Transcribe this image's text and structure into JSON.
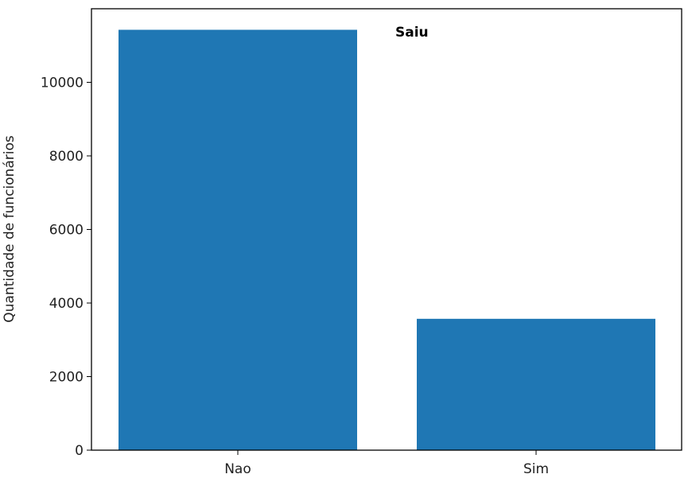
{
  "chart_data": {
    "type": "bar",
    "categories": [
      "Nao",
      "Sim"
    ],
    "values": [
      11428,
      3571
    ],
    "ylabel": "Quantidade de funcionários",
    "xlabel": "",
    "ylim": [
      0,
      12000
    ],
    "yticks": [
      0,
      2000,
      4000,
      6000,
      8000,
      10000
    ],
    "annotation": "Saiu",
    "grid": false,
    "bar_color": "#1f77b4"
  }
}
